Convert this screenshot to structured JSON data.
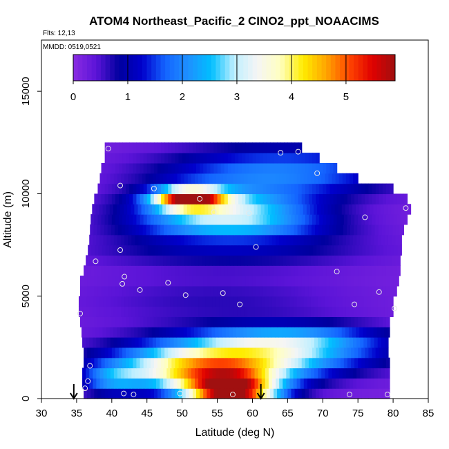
{
  "chart_data": {
    "type": "heatmap",
    "title": "ATOM4 Northeast_Pacific_2 CINO2_ppt_NOAACIMS",
    "subtitle_flights": "Flts: 12,13",
    "subtitle_dates": "MMDD: 0519,0521",
    "xlabel": "Latitude (deg N)",
    "ylabel": "Altitude (m)",
    "xlim": [
      30,
      85
    ],
    "ylim": [
      0,
      17500
    ],
    "x_ticks": [
      "30",
      "35",
      "40",
      "45",
      "50",
      "55",
      "60",
      "65",
      "70",
      "75",
      "80",
      "85"
    ],
    "y_ticks": [
      "0",
      "5000",
      "10000",
      "15000"
    ],
    "colorbar": {
      "range": [
        0,
        5.9
      ],
      "tick_labels": [
        "0",
        "1",
        "2",
        "3",
        "4",
        "5"
      ],
      "colors": [
        "#8a2be2",
        "#5b14d8",
        "#00009e",
        "#0000cc",
        "#1464ff",
        "#1e90ff",
        "#00bfff",
        "#bfefff",
        "#f5f5f5",
        "#ffffc0",
        "#ffec00",
        "#ffa500",
        "#ff4500",
        "#e00000",
        "#a01010"
      ]
    },
    "color_scale": "purple-blue-white-yellow-red",
    "grid": false,
    "colorbar_placement": "top-inside",
    "altitude_bins_m": [
      250,
      750,
      1250,
      1750,
      2250,
      2750,
      3250,
      3750,
      4250,
      4750,
      5250,
      5750,
      6250,
      6750,
      7250,
      7750,
      8250,
      8750,
      9250,
      9750,
      10250,
      10750,
      11250,
      11750,
      12250
    ],
    "row_extent_lat": [
      [
        36.0,
        79.5
      ],
      [
        35.8,
        79.5
      ],
      [
        35.8,
        79.5
      ],
      [
        36.0,
        79.5
      ],
      [
        36.0,
        79.3
      ],
      [
        35.8,
        79.3
      ],
      [
        35.7,
        79.5
      ],
      [
        35.5,
        79.5
      ],
      [
        35.3,
        80.0
      ],
      [
        35.3,
        80.0
      ],
      [
        35.5,
        80.5
      ],
      [
        35.5,
        80.8
      ],
      [
        36.0,
        81.0
      ],
      [
        36.3,
        81.0
      ],
      [
        36.6,
        81.2
      ],
      [
        36.8,
        81.2
      ],
      [
        36.9,
        81.5
      ],
      [
        37.0,
        82.0
      ],
      [
        37.2,
        82.5
      ],
      [
        37.5,
        82.0
      ],
      [
        38.0,
        80.0
      ],
      [
        38.3,
        75.0
      ],
      [
        38.5,
        72.0
      ],
      [
        39.0,
        69.5
      ],
      [
        39.0,
        67.0
      ]
    ],
    "hotspots": [
      {
        "lat": 57,
        "alt_m": 250,
        "ppt": 5.2
      },
      {
        "lat": 53,
        "alt_m": 1250,
        "ppt": 3.8
      },
      {
        "lat": 50,
        "alt_m": 9750,
        "ppt": 4.5
      },
      {
        "lat": 57,
        "alt_m": 9250,
        "ppt": 2.6
      }
    ],
    "sample_points": [
      {
        "lat": 39.5,
        "alt_m": 12200
      },
      {
        "lat": 64.0,
        "alt_m": 12000
      },
      {
        "lat": 66.5,
        "alt_m": 12050
      },
      {
        "lat": 69.2,
        "alt_m": 11000
      },
      {
        "lat": 41.2,
        "alt_m": 10400
      },
      {
        "lat": 46.0,
        "alt_m": 10250
      },
      {
        "lat": 52.5,
        "alt_m": 9750
      },
      {
        "lat": 81.8,
        "alt_m": 9300
      },
      {
        "lat": 54.5,
        "alt_m": 9100
      },
      {
        "lat": 59.5,
        "alt_m": 9050
      },
      {
        "lat": 76.0,
        "alt_m": 8850
      },
      {
        "lat": 60.5,
        "alt_m": 7400
      },
      {
        "lat": 41.2,
        "alt_m": 7250
      },
      {
        "lat": 37.7,
        "alt_m": 6700
      },
      {
        "lat": 72.0,
        "alt_m": 6200
      },
      {
        "lat": 41.8,
        "alt_m": 5950
      },
      {
        "lat": 41.5,
        "alt_m": 5600
      },
      {
        "lat": 48.0,
        "alt_m": 5650
      },
      {
        "lat": 44.0,
        "alt_m": 5300
      },
      {
        "lat": 78.0,
        "alt_m": 5200
      },
      {
        "lat": 55.8,
        "alt_m": 5150
      },
      {
        "lat": 50.5,
        "alt_m": 5050
      },
      {
        "lat": 58.2,
        "alt_m": 4600
      },
      {
        "lat": 74.5,
        "alt_m": 4600
      },
      {
        "lat": 80.2,
        "alt_m": 4400
      },
      {
        "lat": 35.5,
        "alt_m": 4150
      },
      {
        "lat": 36.9,
        "alt_m": 1600
      },
      {
        "lat": 36.6,
        "alt_m": 850
      },
      {
        "lat": 36.2,
        "alt_m": 500
      },
      {
        "lat": 41.7,
        "alt_m": 250
      },
      {
        "lat": 43.1,
        "alt_m": 200
      },
      {
        "lat": 49.7,
        "alt_m": 250
      },
      {
        "lat": 57.2,
        "alt_m": 200
      },
      {
        "lat": 73.8,
        "alt_m": 200
      },
      {
        "lat": 79.2,
        "alt_m": 200
      }
    ],
    "arrows_lat": [
      34.6,
      61.2
    ]
  }
}
